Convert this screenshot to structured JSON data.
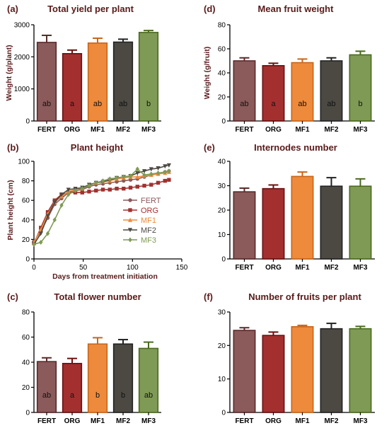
{
  "colors": {
    "FERT": "#8b5a5a",
    "ORG": "#a3302f",
    "MF1": "#ee8a3c",
    "MF2": "#4c4943",
    "MF3": "#7f9a55",
    "FERT_edge": "#5a2a2a",
    "ORG_edge": "#6a1010",
    "MF1_edge": "#c8651a",
    "MF2_edge": "#222222",
    "MF3_edge": "#4a6a1f",
    "axis": "#000000",
    "title": "#5a1a1a"
  },
  "chart_data": [
    {
      "id": "a",
      "type": "bar",
      "panel_label": "(a)",
      "title": "Total yield per plant",
      "ylabel": "Weight (g/plant)",
      "categories": [
        "FERT",
        "ORG",
        "MF1",
        "MF2",
        "MF3"
      ],
      "values": [
        2450,
        2100,
        2430,
        2460,
        2760
      ],
      "errors": [
        220,
        110,
        150,
        90,
        60
      ],
      "letters": [
        "ab",
        "a",
        "ab",
        "ab",
        "b"
      ],
      "ylim": [
        0,
        3000
      ],
      "yticks": [
        0,
        1000,
        2000,
        3000
      ]
    },
    {
      "id": "d",
      "type": "bar",
      "panel_label": "(d)",
      "title": "Mean fruit weight",
      "ylabel": "Weight (g/fruit)",
      "categories": [
        "FERT",
        "ORG",
        "MF1",
        "MF2",
        "MF3"
      ],
      "values": [
        50,
        46,
        48.5,
        50,
        55
      ],
      "errors": [
        2.5,
        2,
        3,
        2.5,
        3
      ],
      "letters": [
        "ab",
        "a",
        "ab",
        "ab",
        "b"
      ],
      "ylim": [
        0,
        80
      ],
      "yticks": [
        0,
        20,
        40,
        60,
        80
      ]
    },
    {
      "id": "b",
      "type": "line",
      "panel_label": "(b)",
      "title": "Plant height",
      "ylabel": "Plant height (cm)",
      "xlabel": "Days from treatment initiation",
      "xlim": [
        0,
        150
      ],
      "xticks": [
        0,
        50,
        100,
        150
      ],
      "ylim": [
        0,
        100
      ],
      "yticks": [
        0,
        20,
        40,
        60,
        80,
        100
      ],
      "x": [
        0,
        7,
        14,
        21,
        28,
        35,
        42,
        49,
        56,
        63,
        70,
        77,
        84,
        91,
        98,
        105,
        112,
        119,
        126,
        133,
        137
      ],
      "series": [
        {
          "name": "FERT",
          "marker": "circle",
          "values": [
            18,
            28,
            42,
            56,
            62,
            68,
            70,
            71,
            74,
            76,
            77,
            78,
            79,
            80,
            81,
            82,
            84,
            86,
            87,
            89,
            90
          ]
        },
        {
          "name": "ORG",
          "marker": "square",
          "values": [
            16,
            32,
            48,
            60,
            66,
            68,
            68,
            68,
            69,
            70,
            71,
            71,
            72,
            72,
            73,
            74,
            75,
            76,
            78,
            80,
            81
          ]
        },
        {
          "name": "MF1",
          "marker": "triangle",
          "values": [
            17,
            30,
            46,
            58,
            64,
            69,
            71,
            72,
            76,
            78,
            79,
            80,
            82,
            83,
            84,
            84,
            85,
            86,
            87,
            88,
            89
          ]
        },
        {
          "name": "MF2",
          "marker": "triangle-down",
          "values": [
            15,
            26,
            44,
            58,
            66,
            71,
            72,
            73,
            76,
            78,
            79,
            81,
            83,
            84,
            85,
            88,
            90,
            92,
            93,
            95,
            96
          ]
        },
        {
          "name": "MF3",
          "marker": "diamond",
          "values": [
            15,
            17,
            26,
            40,
            55,
            66,
            70,
            72,
            75,
            78,
            80,
            82,
            83,
            84,
            85,
            92,
            86,
            87,
            88,
            89,
            90
          ]
        }
      ],
      "legend_position": "center-right"
    },
    {
      "id": "e",
      "type": "bar",
      "panel_label": "(e)",
      "title": "Internodes number",
      "ylabel": "",
      "categories": [
        "FERT",
        "ORG",
        "MF1",
        "MF2",
        "MF3"
      ],
      "values": [
        27.5,
        28.8,
        33.8,
        29.8,
        29.8
      ],
      "errors": [
        1.5,
        1.5,
        1.8,
        3.5,
        3
      ],
      "letters": [],
      "ylim": [
        0,
        40
      ],
      "yticks": [
        0,
        10,
        20,
        30,
        40
      ]
    },
    {
      "id": "c",
      "type": "bar",
      "panel_label": "(c)",
      "title": "Total flower number",
      "ylabel": "",
      "categories": [
        "FERT",
        "ORG",
        "MF1",
        "MF2",
        "MF3"
      ],
      "values": [
        40.5,
        39,
        54.5,
        54.5,
        51
      ],
      "errors": [
        3,
        4,
        5,
        3.5,
        5
      ],
      "letters": [
        "ab",
        "a",
        "b",
        "b",
        "ab"
      ],
      "ylim": [
        0,
        80
      ],
      "yticks": [
        0,
        20,
        40,
        60,
        80
      ]
    },
    {
      "id": "f",
      "type": "bar",
      "panel_label": "(f)",
      "title": "Number of fruits per plant",
      "ylabel": "",
      "categories": [
        "FERT",
        "ORG",
        "MF1",
        "MF2",
        "MF3"
      ],
      "values": [
        24.5,
        23,
        25.6,
        25,
        25
      ],
      "errors": [
        0.8,
        1,
        0.4,
        1.6,
        0.7
      ],
      "letters": [],
      "ylim": [
        0,
        30
      ],
      "yticks": [
        0,
        10,
        20,
        30
      ]
    }
  ]
}
